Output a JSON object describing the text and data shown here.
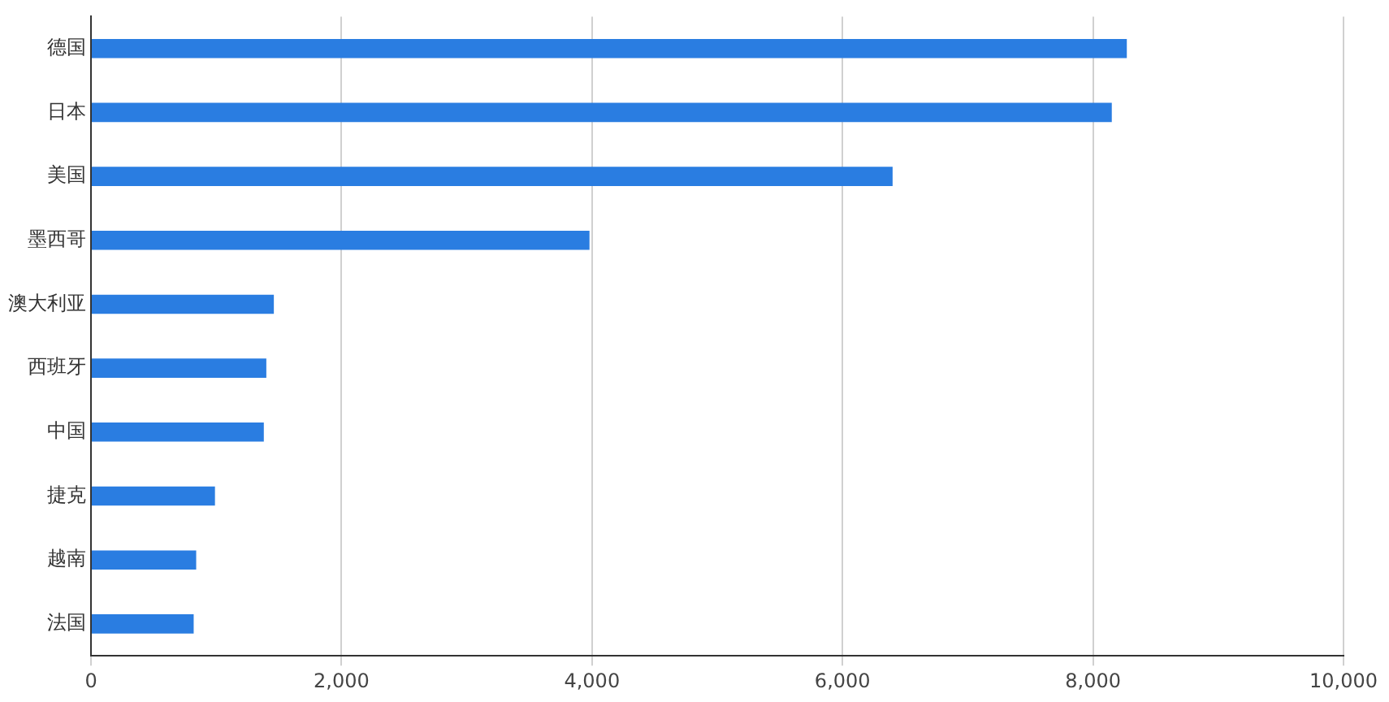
{
  "chart_data": {
    "type": "bar",
    "orientation": "horizontal",
    "categories": [
      "德国",
      "日本",
      "美国",
      "墨西哥",
      "澳大利亚",
      "西班牙",
      "中国",
      "捷克",
      "越南",
      "法国"
    ],
    "values": [
      8270,
      8150,
      6400,
      3980,
      1460,
      1400,
      1380,
      990,
      840,
      820
    ],
    "color": "#2a7de1",
    "xlim": [
      0,
      10000
    ],
    "xticks": [
      {
        "value": 0,
        "label": "0"
      },
      {
        "value": 2000,
        "label": "2,000"
      },
      {
        "value": 4000,
        "label": "4,000"
      },
      {
        "value": 6000,
        "label": "6,000"
      },
      {
        "value": 8000,
        "label": "8,000"
      },
      {
        "value": 10000,
        "label": "10,000"
      }
    ],
    "grid": "x",
    "legend": false
  }
}
